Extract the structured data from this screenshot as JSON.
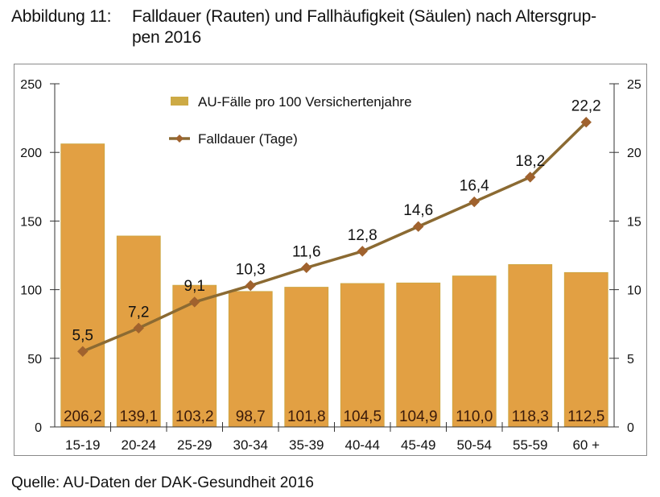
{
  "caption": {
    "number": "Abbildung 11:",
    "title": "Falldauer (Rauten) und Fallhäufigkeit (Säulen) nach Altersgruppen 2016",
    "title_line1": "Falldauer (Rauten) und Fallhäufigkeit (Säulen) nach Altersgrup-",
    "title_line2": "pen 2016"
  },
  "source": "Quelle: AU-Daten der DAK-Gesundheit 2016",
  "colors": {
    "bar": "#E2A043",
    "bar_edge": "#C9A640",
    "line": "#8B6A32",
    "marker": "#A0622E",
    "axis": "#333333",
    "frame": "#8a8a8a"
  },
  "chart_data": {
    "type": "bar+line",
    "title": "Falldauer (Rauten) und Fallhäufigkeit (Säulen) nach Altersgruppen 2016",
    "categories": [
      "15-19",
      "20-24",
      "25-29",
      "30-34",
      "35-39",
      "40-44",
      "45-49",
      "50-54",
      "55-59",
      "60 +"
    ],
    "series": [
      {
        "name": "AU-Fälle pro 100 Versichertenjahre",
        "type": "bar",
        "axis": "left",
        "values": [
          206.2,
          139.1,
          103.2,
          98.7,
          101.8,
          104.5,
          104.9,
          110.0,
          118.3,
          112.5
        ],
        "labels": [
          "206,2",
          "139,1",
          "103,2",
          "98,7",
          "101,8",
          "104,5",
          "104,9",
          "110,0",
          "118,3",
          "112,5"
        ]
      },
      {
        "name": "Falldauer (Tage)",
        "type": "line",
        "marker": "diamond",
        "axis": "right",
        "values": [
          5.5,
          7.2,
          9.1,
          10.3,
          11.6,
          12.8,
          14.6,
          16.4,
          18.2,
          22.2
        ],
        "labels": [
          "5,5",
          "7,2",
          "9,1",
          "10,3",
          "11,6",
          "12,8",
          "14,6",
          "16,4",
          "18,2",
          "22,2"
        ]
      }
    ],
    "y_left": {
      "range": [
        0,
        250
      ],
      "ticks": [
        0,
        50,
        100,
        150,
        200,
        250
      ],
      "tick_labels": [
        "0",
        "50",
        "100",
        "150",
        "200",
        "250"
      ]
    },
    "y_right": {
      "range": [
        0,
        25
      ],
      "ticks": [
        0,
        5,
        10,
        15,
        20,
        25
      ],
      "tick_labels": [
        "0",
        "5",
        "10",
        "15",
        "20",
        "25"
      ]
    },
    "legend": {
      "placement": "top-center",
      "entries": [
        "AU-Fälle pro 100 Versichertenjahre",
        "Falldauer (Tage)"
      ]
    },
    "grid": false,
    "xlabel": "",
    "ylabel": ""
  }
}
